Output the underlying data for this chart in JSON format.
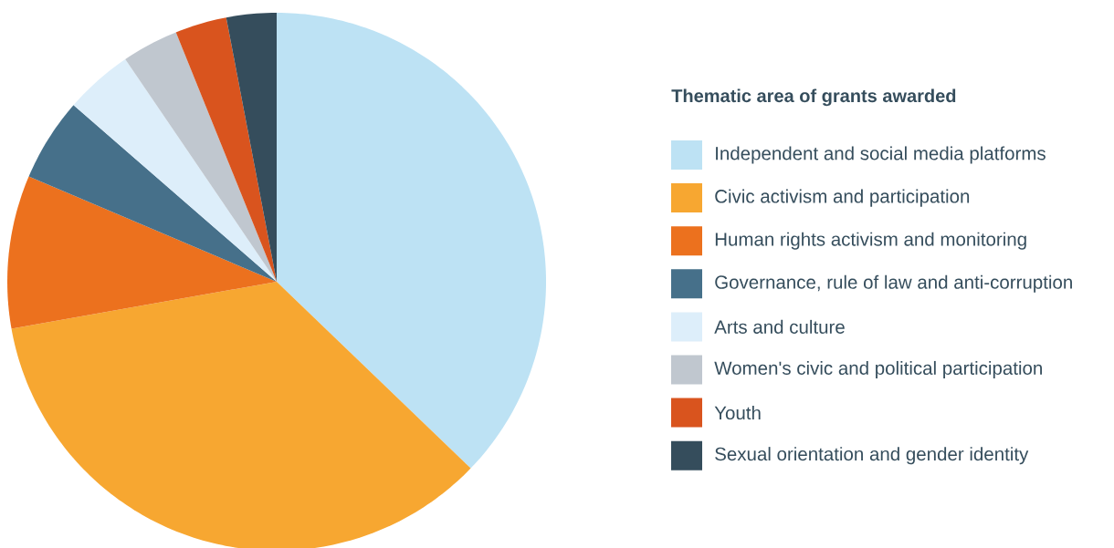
{
  "chart_data": {
    "type": "pie",
    "legend_title": "Thematic area of grants awarded",
    "categories": [
      "Independent and social media platforms",
      "Civic activism and participation",
      "Human rights activism and monitoring",
      "Governance, rule of law and anti-corruption",
      "Arts and culture",
      "Women's civic and political participation",
      "Youth",
      "Sexual orientation and gender identity"
    ],
    "values": [
      37.2,
      35.0,
      9.2,
      5.0,
      4.1,
      3.4,
      3.1,
      3.0
    ],
    "colors": [
      "#bde2f4",
      "#f7a731",
      "#ec711e",
      "#46708a",
      "#ddeefa",
      "#c0c7cf",
      "#d9541e",
      "#354d5c"
    ],
    "legend": "right"
  }
}
